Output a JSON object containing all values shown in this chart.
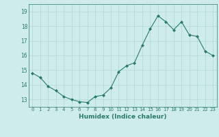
{
  "x": [
    0,
    1,
    2,
    3,
    4,
    5,
    6,
    7,
    8,
    9,
    10,
    11,
    12,
    13,
    14,
    15,
    16,
    17,
    18,
    19,
    20,
    21,
    22,
    23
  ],
  "y": [
    14.8,
    14.5,
    13.9,
    13.6,
    13.2,
    13.0,
    12.85,
    12.8,
    13.2,
    13.3,
    13.8,
    14.9,
    15.3,
    15.5,
    16.7,
    17.8,
    18.7,
    18.3,
    17.75,
    18.3,
    17.4,
    17.3,
    16.3,
    16.0
  ],
  "line_color": "#2a7a6a",
  "marker": "D",
  "marker_size": 2.0,
  "bg_color": "#cdecea",
  "grid_color": "#aed6d2",
  "xlabel": "Humidex (Indice chaleur)",
  "ylim": [
    12.5,
    19.5
  ],
  "xlim": [
    -0.5,
    23.5
  ],
  "yticks": [
    13,
    14,
    15,
    16,
    17,
    18,
    19
  ],
  "xticks": [
    0,
    1,
    2,
    3,
    4,
    5,
    6,
    7,
    8,
    9,
    10,
    11,
    12,
    13,
    14,
    15,
    16,
    17,
    18,
    19,
    20,
    21,
    22,
    23
  ],
  "font_color": "#2a7a6a"
}
